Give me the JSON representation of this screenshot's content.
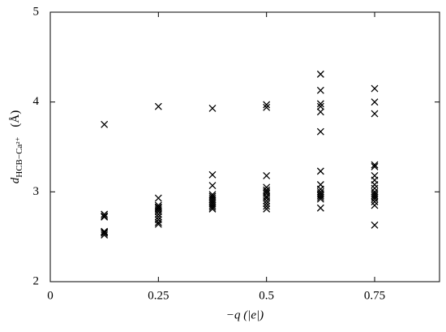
{
  "chart_data": {
    "type": "scatter",
    "xlabel": "−q   (|e|)",
    "ylabel": "d",
    "ylabel_subscript": "HCB−Ca²⁺",
    "ylabel_unit": "(Å)",
    "color": "#000000",
    "marker": "x",
    "xlim": [
      0,
      0.9
    ],
    "ylim": [
      2,
      5
    ],
    "xticks": [
      0,
      0.25,
      0.5,
      0.75
    ],
    "yticks": [
      2,
      3,
      4,
      5
    ],
    "x": [
      0.125,
      0.125,
      0.125,
      0.125,
      0.125,
      0.125,
      0.125,
      0.125,
      0.25,
      0.25,
      0.25,
      0.25,
      0.25,
      0.25,
      0.25,
      0.25,
      0.25,
      0.25,
      0.25,
      0.25,
      0.375,
      0.375,
      0.375,
      0.375,
      0.375,
      0.375,
      0.375,
      0.375,
      0.375,
      0.375,
      0.375,
      0.375,
      0.5,
      0.5,
      0.5,
      0.5,
      0.5,
      0.5,
      0.5,
      0.5,
      0.5,
      0.5,
      0.5,
      0.5,
      0.5,
      0.625,
      0.625,
      0.625,
      0.625,
      0.625,
      0.625,
      0.625,
      0.625,
      0.625,
      0.625,
      0.625,
      0.625,
      0.625,
      0.625,
      0.625,
      0.75,
      0.75,
      0.75,
      0.75,
      0.75,
      0.75,
      0.75,
      0.75,
      0.75,
      0.75,
      0.75,
      0.75,
      0.75,
      0.75,
      0.75,
      0.75,
      0.75
    ],
    "y": [
      3.75,
      2.75,
      2.73,
      2.72,
      2.56,
      2.55,
      2.54,
      2.52,
      3.95,
      2.93,
      2.85,
      2.83,
      2.82,
      2.8,
      2.78,
      2.75,
      2.72,
      2.69,
      2.66,
      2.64,
      3.93,
      3.19,
      3.07,
      2.97,
      2.95,
      2.93,
      2.91,
      2.89,
      2.87,
      2.85,
      2.83,
      2.81,
      3.97,
      3.94,
      3.18,
      3.05,
      3.02,
      3.0,
      2.98,
      2.95,
      2.93,
      2.9,
      2.87,
      2.84,
      2.81,
      4.31,
      4.13,
      3.98,
      3.95,
      3.89,
      3.67,
      3.23,
      3.08,
      3.03,
      3.0,
      2.98,
      2.96,
      2.94,
      2.92,
      2.82,
      4.15,
      4.0,
      3.87,
      3.3,
      3.28,
      3.18,
      3.13,
      3.08,
      3.04,
      3.0,
      2.98,
      2.96,
      2.94,
      2.92,
      2.89,
      2.85,
      2.63
    ]
  }
}
